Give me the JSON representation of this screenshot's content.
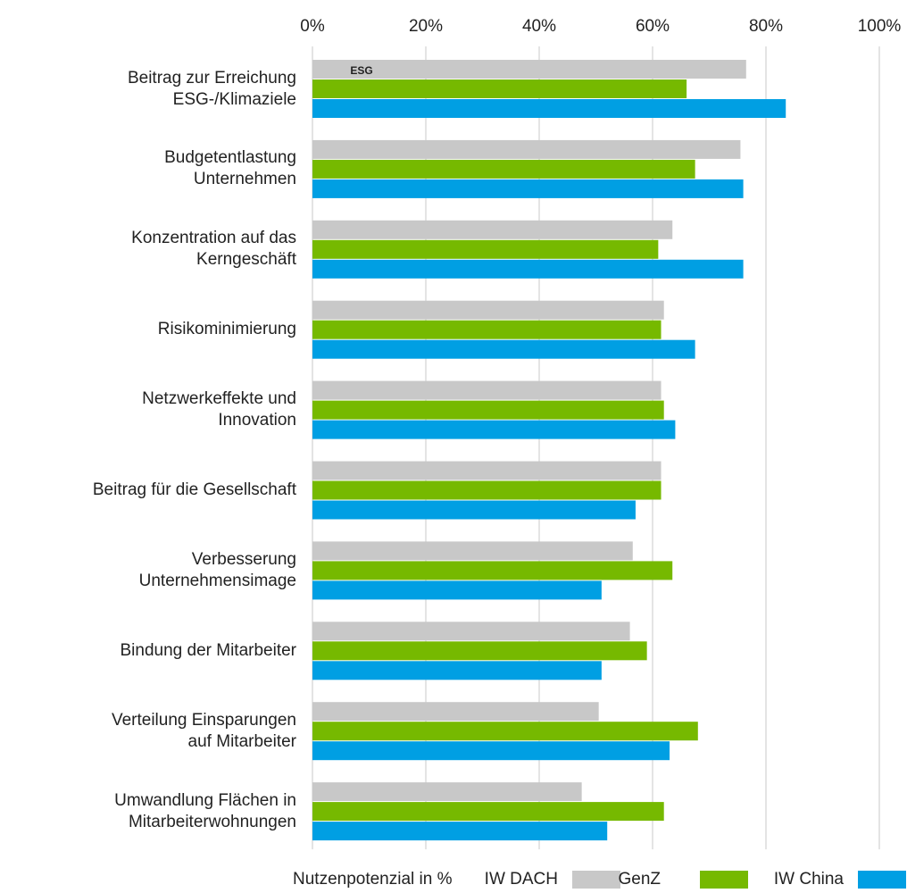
{
  "chart_data": {
    "type": "bar",
    "orientation": "horizontal",
    "categories": [
      "Beitrag zur Erreichung\nESG-/Klimaziele",
      "Budgetentlastung\nUnternehmen",
      "Konzentration auf das\nKerngeschäft",
      "Risikominimierung",
      "Netzwerkeffekte und\nInnovation",
      "Beitrag für die Gesellschaft",
      "Verbesserung\nUnternehmensimage",
      "Bindung der Mitarbeiter",
      "Verteilung Einsparungen\nauf Mitarbeiter",
      "Umwandlung Flächen in\nMitarbeiterwohnungen"
    ],
    "series": [
      {
        "name": "IW DACH",
        "color": "#c8c8c8",
        "values": [
          76.5,
          75.5,
          63.5,
          62,
          61.5,
          61.5,
          56.5,
          56,
          50.5,
          47.5
        ]
      },
      {
        "name": "GenZ",
        "color": "#76b900",
        "values": [
          66,
          67.5,
          61,
          61.5,
          62,
          61.5,
          63.5,
          59,
          68,
          62
        ]
      },
      {
        "name": "IW China",
        "color": "#009fe3",
        "values": [
          83.5,
          76,
          76,
          67.5,
          64,
          57,
          51,
          51,
          63,
          52
        ]
      }
    ],
    "legend_title": "Nutzenpotenzial in %",
    "icon_text": "ESG",
    "xlim": [
      0,
      100
    ],
    "xticks": [
      {
        "value": 0,
        "label": "0%"
      },
      {
        "value": 20,
        "label": "20%"
      },
      {
        "value": 40,
        "label": "40%"
      },
      {
        "value": 60,
        "label": "60%"
      },
      {
        "value": 80,
        "label": "80%"
      },
      {
        "value": 100,
        "label": "100%"
      }
    ],
    "grid": true,
    "legend": "bottom"
  }
}
